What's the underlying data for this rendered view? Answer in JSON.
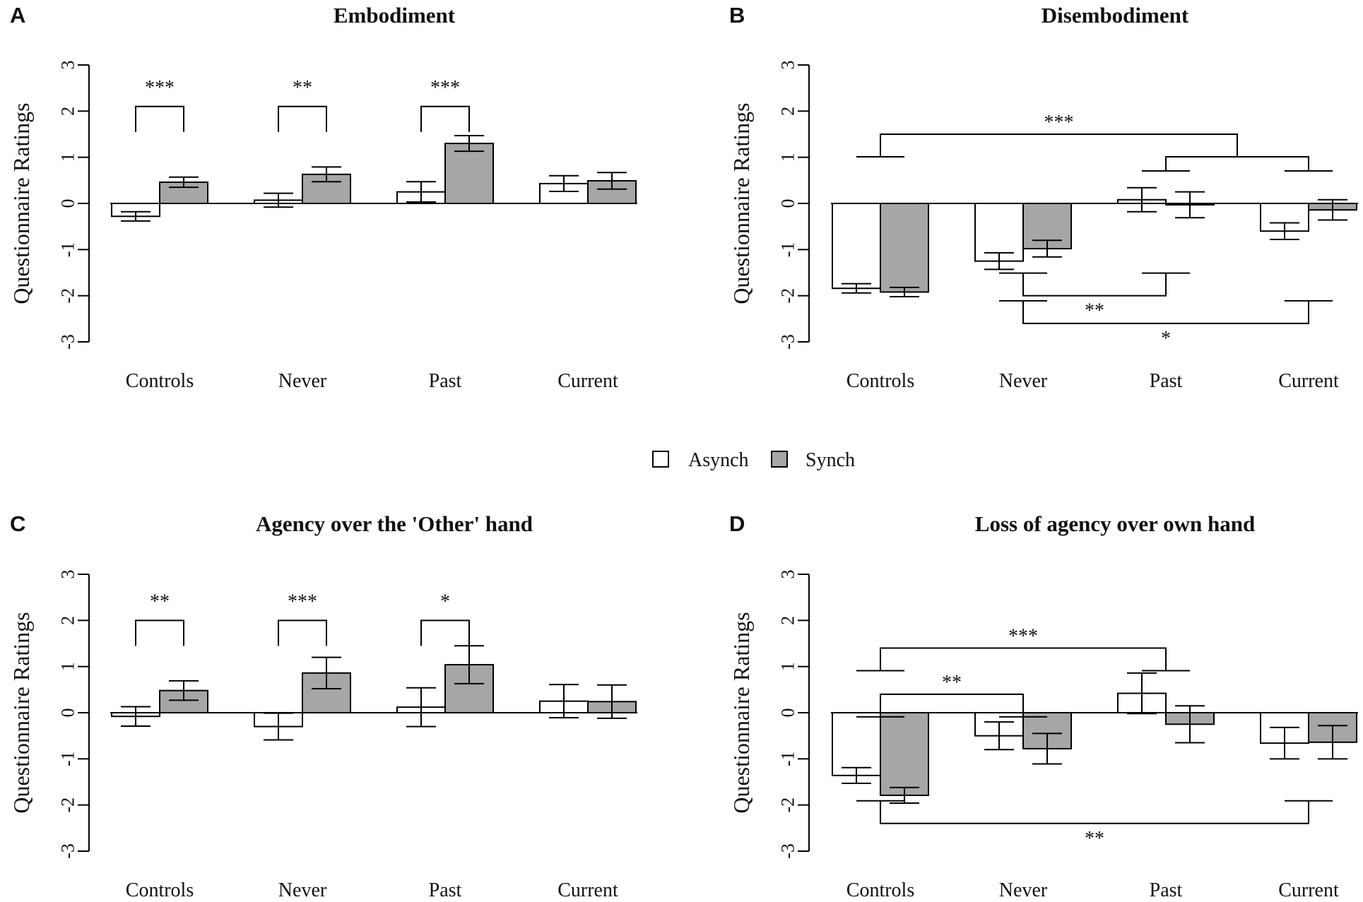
{
  "legend": {
    "entries": [
      {
        "label": "Asynch",
        "color": "#ffffff"
      },
      {
        "label": "Synch",
        "color": "#a6a6a6"
      }
    ]
  },
  "chart_data": [
    {
      "type": "bar",
      "panel_label": "A",
      "title": "Embodiment",
      "ylabel": "Questionnaire Ratings",
      "ylim": [
        -3,
        3
      ],
      "yticks": [
        "3",
        "2",
        "1",
        "0",
        "-1",
        "-2",
        "-3"
      ],
      "categories": [
        "Controls",
        "Never",
        "Past",
        "Current"
      ],
      "series": [
        {
          "name": "Asynch",
          "values": [
            -0.28,
            0.07,
            0.25,
            0.43
          ],
          "errors": [
            0.1,
            0.15,
            0.22,
            0.17
          ]
        },
        {
          "name": "Synch",
          "values": [
            0.46,
            0.63,
            1.3,
            0.49
          ],
          "errors": [
            0.11,
            0.16,
            0.17,
            0.18
          ]
        }
      ],
      "brackets": [
        {
          "type": "within",
          "category": 0,
          "height": 2.1,
          "stars": "***"
        },
        {
          "type": "within",
          "category": 1,
          "height": 2.1,
          "stars": "**"
        },
        {
          "type": "within",
          "category": 2,
          "height": 2.1,
          "stars": "***"
        }
      ]
    },
    {
      "type": "bar",
      "panel_label": "B",
      "title": "Disembodiment",
      "ylabel": "Questionnaire Ratings",
      "ylim": [
        -3,
        3
      ],
      "yticks": [
        "3",
        "2",
        "1",
        "0",
        "-1",
        "-2",
        "-3"
      ],
      "categories": [
        "Controls",
        "Never",
        "Past",
        "Current"
      ],
      "series": [
        {
          "name": "Asynch",
          "values": [
            -1.84,
            -1.25,
            0.08,
            -0.6
          ],
          "errors": [
            0.1,
            0.18,
            0.26,
            0.18
          ]
        },
        {
          "name": "Synch",
          "values": [
            -1.92,
            -0.98,
            -0.03,
            -0.14
          ],
          "errors": [
            0.1,
            0.18,
            0.28,
            0.22
          ]
        }
      ],
      "brackets": [
        {
          "type": "between",
          "left": 0,
          "right": [
            2,
            3
          ],
          "height": 1.5,
          "stars": "***"
        },
        {
          "type": "between",
          "left": 1,
          "right": 2,
          "height": -2.0,
          "stars": "**"
        },
        {
          "type": "between",
          "left": 1,
          "right": 3,
          "height": -2.6,
          "stars": "*"
        }
      ]
    },
    {
      "type": "bar",
      "panel_label": "C",
      "title": "Agency over the 'Other' hand",
      "ylabel": "Questionnaire Ratings",
      "ylim": [
        -3,
        3
      ],
      "yticks": [
        "3",
        "2",
        "1",
        "0",
        "-1",
        "-2",
        "-3"
      ],
      "categories": [
        "Controls",
        "Never",
        "Past",
        "Current"
      ],
      "series": [
        {
          "name": "Asynch",
          "values": [
            -0.08,
            -0.3,
            0.12,
            0.25
          ],
          "errors": [
            0.21,
            0.29,
            0.42,
            0.36
          ]
        },
        {
          "name": "Synch",
          "values": [
            0.48,
            0.86,
            1.04,
            0.24
          ],
          "errors": [
            0.21,
            0.34,
            0.41,
            0.36
          ]
        }
      ],
      "brackets": [
        {
          "type": "within",
          "category": 0,
          "height": 2.0,
          "stars": "**"
        },
        {
          "type": "within",
          "category": 1,
          "height": 2.0,
          "stars": "***"
        },
        {
          "type": "within",
          "category": 2,
          "height": 2.0,
          "stars": "*"
        }
      ]
    },
    {
      "type": "bar",
      "panel_label": "D",
      "title": "Loss of agency over own hand",
      "ylabel": "Questionnaire Ratings",
      "ylim": [
        -3,
        3
      ],
      "yticks": [
        "3",
        "2",
        "1",
        "0",
        "-1",
        "-2",
        "-3"
      ],
      "categories": [
        "Controls",
        "Never",
        "Past",
        "Current"
      ],
      "series": [
        {
          "name": "Asynch",
          "values": [
            -1.36,
            -0.5,
            0.42,
            -0.66
          ],
          "errors": [
            0.17,
            0.3,
            0.44,
            0.34
          ]
        },
        {
          "name": "Synch",
          "values": [
            -1.79,
            -0.78,
            -0.25,
            -0.64
          ],
          "errors": [
            0.17,
            0.33,
            0.4,
            0.36
          ]
        }
      ],
      "brackets": [
        {
          "type": "between",
          "left": 0,
          "right": 2,
          "height": 1.4,
          "stars": "***"
        },
        {
          "type": "between",
          "left": 0,
          "right": 1,
          "height": 0.4,
          "stars": "**"
        },
        {
          "type": "between",
          "left": 0,
          "right": 3,
          "height": -2.4,
          "stars": "**"
        }
      ]
    }
  ]
}
